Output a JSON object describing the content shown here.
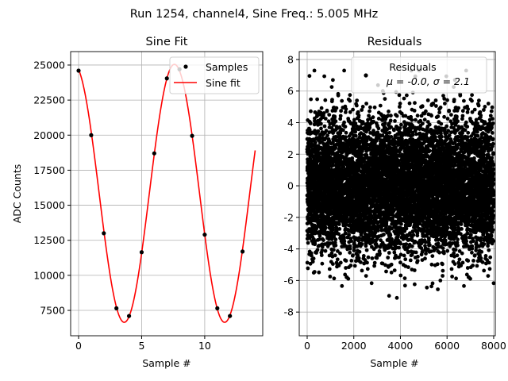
{
  "suptitle": "Run 1254, channel4, Sine Freq.: 5.005 MHz",
  "chart_data": [
    {
      "type": "line",
      "title": "Sine Fit",
      "xlabel": "Sample #",
      "ylabel": "ADC Counts",
      "xlim": [
        -0.63,
        14.6
      ],
      "ylim": [
        5690,
        25960
      ],
      "xticks": [
        0,
        5,
        10
      ],
      "yticks": [
        7500,
        10000,
        12500,
        15000,
        17500,
        20000,
        22500,
        25000
      ],
      "grid": true,
      "legend": {
        "placement": "top-right",
        "entries": [
          "Samples",
          "Sine fit"
        ]
      },
      "samples": {
        "name": "Samples",
        "x": [
          0,
          1,
          2,
          3,
          4,
          5,
          6,
          7,
          8,
          9,
          10,
          11,
          12,
          13
        ],
        "y": [
          24600,
          20000,
          13000,
          7650,
          7100,
          11650,
          18700,
          24050,
          24700,
          19950,
          12900,
          7650,
          7100,
          11700
        ],
        "color": "#000000"
      },
      "fit": {
        "name": "Sine fit",
        "model": "offset + amplitude*cos(2*pi*(x - peak_x)/period)",
        "offset": 15850,
        "amplitude": 9200,
        "period": 7.96,
        "peak_x": 7.6,
        "x_range": [
          0,
          14
        ],
        "color": "#ff0000"
      }
    },
    {
      "type": "scatter",
      "title": "Residuals",
      "xlabel": "Sample #",
      "ylabel": "",
      "xlim": [
        -340,
        8070
      ],
      "ylim": [
        -9.5,
        8.5
      ],
      "xticks": [
        0,
        2000,
        4000,
        6000,
        8000
      ],
      "yticks": [
        -8,
        -6,
        -4,
        -2,
        0,
        2,
        4,
        6,
        8
      ],
      "grid": true,
      "legend": {
        "placement": "top-right",
        "entries": [
          "Residuals",
          "μ = -0.0, σ = 2.1"
        ]
      },
      "residuals": {
        "n": 8000,
        "mean": 0.0,
        "std": 2.1,
        "min": -8.6,
        "max": 7.3,
        "color": "#000000"
      }
    }
  ]
}
